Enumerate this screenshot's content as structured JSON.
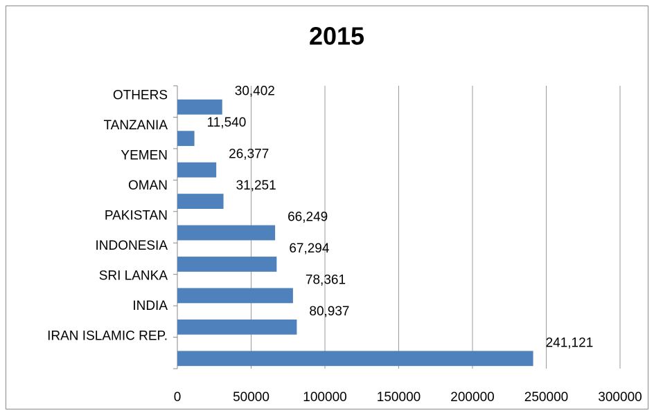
{
  "chart_data": {
    "type": "hbar",
    "title": "2015",
    "categories": [
      "OTHERS",
      "TANZANIA",
      "YEMEN",
      "OMAN",
      "PAKISTAN",
      "INDONESIA",
      "SRI LANKA",
      "INDIA",
      "IRAN ISLAMIC REP."
    ],
    "values": [
      30402,
      11540,
      26377,
      31251,
      66249,
      67294,
      78361,
      80937,
      241121
    ],
    "value_labels": [
      "30,402",
      "11,540",
      "26,377",
      "31,251",
      "66,249",
      "67,294",
      "78,361",
      "80,937",
      "241,121"
    ],
    "color": "#4f81bd",
    "xlim": [
      0,
      300000
    ],
    "xticks": [
      0,
      50000,
      100000,
      150000,
      200000,
      250000,
      300000
    ],
    "grid": true
  }
}
